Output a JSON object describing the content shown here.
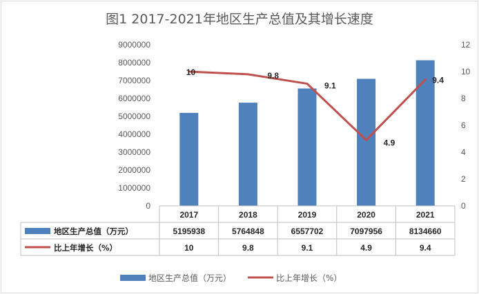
{
  "chart_data": {
    "type": "bar",
    "title": "图1  2017-2021年地区生产总值及其增长速度",
    "categories": [
      "2017",
      "2018",
      "2019",
      "2020",
      "2021"
    ],
    "series": [
      {
        "name": "地区生产总值（万元）",
        "type": "bar",
        "axis": "left",
        "color": "#4F81BD",
        "values": [
          5195938,
          5764848,
          6557702,
          7097956,
          8134660
        ]
      },
      {
        "name": "比上年增长（%）",
        "type": "line",
        "axis": "right",
        "color": "#C0504D",
        "values": [
          10,
          9.8,
          9.1,
          4.9,
          9.4
        ]
      }
    ],
    "y_left": {
      "ylim": [
        0,
        9000000
      ],
      "ticks": [
        "0",
        "1000000",
        "2000000",
        "3000000",
        "4000000",
        "5000000",
        "6000000",
        "7000000",
        "8000000",
        "9000000"
      ]
    },
    "y_right": {
      "ylim": [
        0,
        12
      ],
      "ticks": [
        "0",
        "2",
        "4",
        "6",
        "8",
        "10",
        "12"
      ]
    },
    "data_table": true,
    "legend_placement": "bottom",
    "grid": false
  }
}
